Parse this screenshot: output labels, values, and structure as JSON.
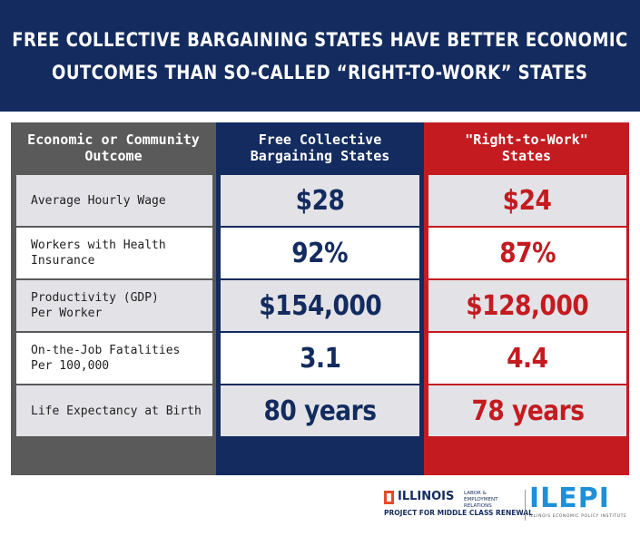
{
  "title": {
    "line1": "FREE COLLECTIVE BARGAINING STATES HAVE BETTER ECONOMIC",
    "line2": "OUTCOMES THAN SO-CALLED “RIGHT-TO-WORK” STATES"
  },
  "table": {
    "headers": [
      [
        "Economic or Community",
        "Outcome"
      ],
      [
        "Free Collective",
        "Bargaining States"
      ],
      [
        "\"Right-to-Work\"",
        "States"
      ]
    ],
    "rows": [
      {
        "label": "Average Hourly Wage",
        "fcb": "$28",
        "rtw": "$24"
      },
      {
        "label": "Workers with Health\nInsurance",
        "fcb": "92%",
        "rtw": "87%"
      },
      {
        "label": "Productivity (GDP)\nPer Worker",
        "fcb": "$154,000",
        "rtw": "$128,000"
      },
      {
        "label": "On-the-Job Fatalities\nPer 100,000",
        "fcb": "3.1",
        "rtw": "4.4"
      },
      {
        "label": "Life Expectancy at Birth",
        "fcb": "80 years",
        "rtw": "78 years"
      }
    ]
  },
  "logos": {
    "illinois_name": "ILLINOIS",
    "illinois_sub": "LABOR & EMPLOYMENT RELATIONS",
    "illinois_project": "PROJECT FOR MIDDLE CLASS RENEWAL",
    "ilepi_name": "ILEPI",
    "ilepi_sub": "ILLINOIS ECONOMIC POLICY INSTITUTE"
  },
  "colors": {
    "navy": "#132b5e",
    "red": "#c41b20",
    "gray": "#5a5a5a",
    "row_alt": "#e3e3e7",
    "ilepi_blue": "#1f8fd8",
    "illinois_orange": "#e84a27"
  }
}
